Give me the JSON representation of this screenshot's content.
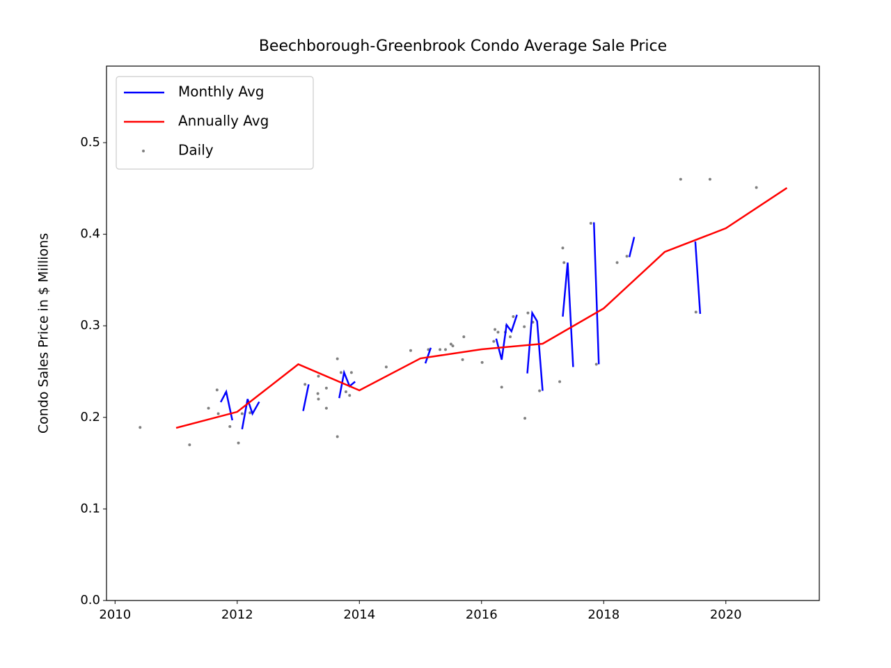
{
  "chart_data": {
    "type": "line",
    "title": "Beechborough-Greenbrook Condo Average Sale Price",
    "y_label": "Condo Sales Price in $ Millions",
    "xlim": [
      2009.86,
      2021.53
    ],
    "ylim": [
      0,
      0.5836
    ],
    "xticks": [
      2010,
      2012,
      2014,
      2016,
      2018,
      2020
    ],
    "yticks": [
      {
        "value": 0,
        "label": "0.0"
      },
      0.1,
      0.2,
      0.3,
      0.4,
      0.5
    ],
    "grid": false,
    "legend": "upper left",
    "series": [
      {
        "name": "Monthly Avg",
        "type": "line",
        "color": "#0000ff",
        "x": [
          2011.73,
          2011.82,
          2011.92,
          null,
          2012.08,
          2012.17,
          2012.25,
          2012.36,
          null,
          2013.08,
          2013.17,
          null,
          2013.67,
          2013.75,
          2013.84,
          2013.93,
          null,
          2015.08,
          2015.17,
          null,
          2016.24,
          2016.33,
          2016.41,
          2016.49,
          2016.58,
          null,
          2016.75,
          2016.83,
          2016.91,
          2017.0,
          null,
          2017.33,
          2017.41,
          2017.5,
          null,
          2017.84,
          2017.92,
          null,
          2018.42,
          2018.5,
          null,
          2019.5,
          2019.58
        ],
        "values": [
          0.2166,
          0.228,
          0.1968,
          null,
          0.187,
          0.22,
          0.204,
          0.217,
          null,
          0.207,
          0.236,
          null,
          0.221,
          0.249,
          0.234,
          0.239,
          null,
          0.259,
          0.276,
          null,
          0.286,
          0.263,
          0.301,
          0.294,
          0.312,
          null,
          0.248,
          0.314,
          0.305,
          0.229,
          null,
          0.31,
          0.369,
          0.255,
          null,
          0.413,
          0.258,
          null,
          0.375,
          0.397,
          null,
          0.392,
          0.313
        ]
      },
      {
        "name": "Annually Avg",
        "type": "line",
        "color": "#ff0000",
        "x": [
          2011,
          2012,
          2013,
          2014,
          2015,
          2016,
          2017,
          2018,
          2019,
          2020,
          2021
        ],
        "values": [
          0.1885,
          0.206,
          0.258,
          0.2295,
          0.2644,
          0.2743,
          0.2804,
          0.319,
          0.3807,
          0.4065,
          0.4506
        ]
      },
      {
        "name": "Daily",
        "type": "scatter",
        "color": "#808080",
        "x": [
          2010.41,
          2011.22,
          2011.53,
          2011.67,
          2011.69,
          2011.81,
          2011.88,
          2012.02,
          2012.08,
          2012.21,
          2013.11,
          2013.33,
          2013.32,
          2013.33,
          2013.46,
          2013.46,
          2013.64,
          2013.64,
          2013.7,
          2013.78,
          2013.84,
          2013.87,
          2014.44,
          2014.84,
          2015.13,
          2015.32,
          2015.41,
          2015.5,
          2015.53,
          2015.69,
          2015.71,
          2016.01,
          2016.2,
          2016.22,
          2016.27,
          2016.33,
          2016.39,
          2016.41,
          2016.47,
          2016.52,
          2016.7,
          2016.71,
          2016.76,
          2016.84,
          2016.95,
          2017.28,
          2017.33,
          2017.35,
          2017.79,
          2017.88,
          2018.22,
          2018.38,
          2019.26,
          2019.51,
          2019.74,
          2020.5
        ],
        "values": [
          0.189,
          0.17,
          0.21,
          0.23,
          0.204,
          0.226,
          0.19,
          0.172,
          0.204,
          0.205,
          0.236,
          0.245,
          0.226,
          0.22,
          0.232,
          0.21,
          0.264,
          0.179,
          0.249,
          0.228,
          0.224,
          0.249,
          0.255,
          0.273,
          0.274,
          0.274,
          0.274,
          0.28,
          0.278,
          0.263,
          0.288,
          0.26,
          0.283,
          0.296,
          0.293,
          0.233,
          0.293,
          0.3,
          0.288,
          0.31,
          0.299,
          0.199,
          0.314,
          0.304,
          0.229,
          0.239,
          0.385,
          0.369,
          0.412,
          0.258,
          0.369,
          0.376,
          0.46,
          0.315,
          0.46,
          0.451
        ]
      }
    ]
  }
}
